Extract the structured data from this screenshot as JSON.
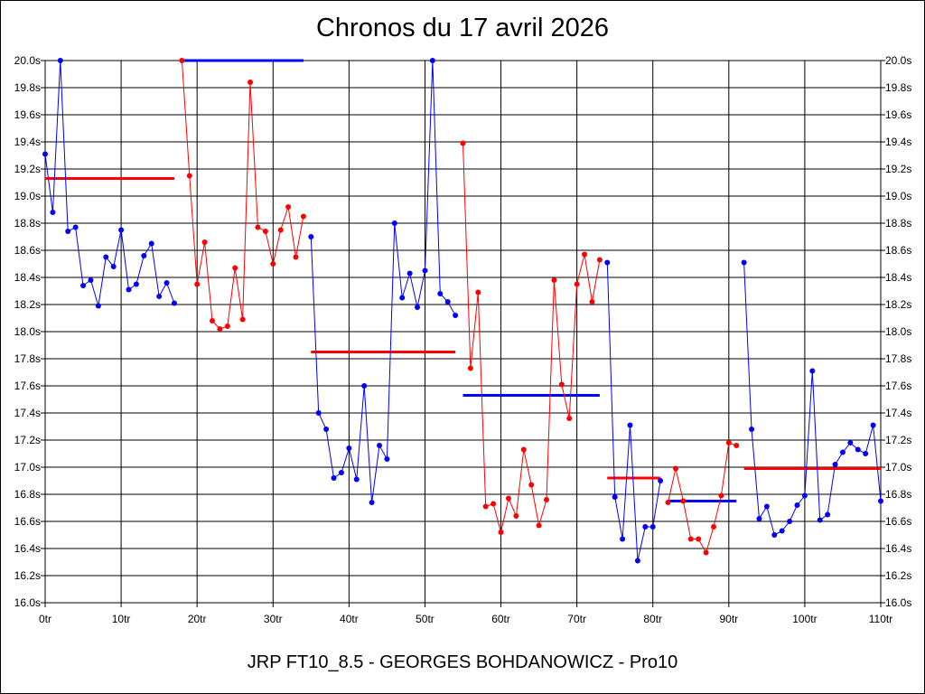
{
  "chart_data": {
    "type": "line",
    "title": "Chronos du 17 avril 2026",
    "subtitle": "JRP FT10_8.5 - GEORGES BOHDANOWICZ - Pro10",
    "xlabel": "",
    "ylabel": "",
    "xlim": [
      0,
      110
    ],
    "ylim": [
      16.0,
      20.0
    ],
    "x_ticks": [
      0,
      10,
      20,
      30,
      40,
      50,
      60,
      70,
      80,
      90,
      100,
      110
    ],
    "x_tick_labels": [
      "0tr",
      "10tr",
      "20tr",
      "30tr",
      "40tr",
      "50tr",
      "60tr",
      "70tr",
      "80tr",
      "90tr",
      "100tr",
      "110tr"
    ],
    "y_ticks": [
      16.0,
      16.2,
      16.4,
      16.6,
      16.8,
      17.0,
      17.2,
      17.4,
      17.6,
      17.8,
      18.0,
      18.2,
      18.4,
      18.6,
      18.8,
      19.0,
      19.2,
      19.4,
      19.6,
      19.8,
      20.0
    ],
    "y_tick_labels": [
      "16.0s",
      "16.2s",
      "16.4s",
      "16.6s",
      "16.8s",
      "17.0s",
      "17.2s",
      "17.4s",
      "17.6s",
      "17.8s",
      "18.0s",
      "18.2s",
      "18.4s",
      "18.6s",
      "18.8s",
      "19.0s",
      "19.2s",
      "19.4s",
      "19.6s",
      "19.8s",
      "20.0s"
    ],
    "grid": true,
    "colors": {
      "blue": "#0000ff",
      "red": "#ff0000",
      "grid": "#000000"
    },
    "series": [
      {
        "color": "#0000ff",
        "x": [
          0,
          1,
          2,
          3,
          4,
          5,
          6,
          7,
          8,
          9,
          10,
          11,
          12,
          13,
          14,
          15,
          16,
          17
        ],
        "values": [
          19.31,
          18.88,
          20.0,
          18.74,
          18.77,
          18.34,
          18.38,
          18.19,
          18.55,
          18.48,
          18.75,
          18.31,
          18.35,
          18.56,
          18.65,
          18.26,
          18.36,
          18.21
        ]
      },
      {
        "color": "#ff0000",
        "x": [
          18,
          19,
          20,
          21,
          22,
          23,
          24,
          25,
          26,
          27,
          28,
          29,
          30,
          31,
          32,
          33,
          34
        ],
        "values": [
          20.0,
          19.15,
          18.35,
          18.66,
          18.08,
          18.02,
          18.04,
          18.47,
          18.09,
          19.84,
          18.77,
          18.74,
          18.5,
          18.75,
          18.92,
          18.55,
          18.85
        ]
      },
      {
        "color": "#0000ff",
        "x": [
          35,
          36,
          37,
          38,
          39,
          40,
          41,
          42,
          43,
          44,
          45,
          46,
          47,
          48,
          49,
          50,
          51,
          52,
          53,
          54
        ],
        "values": [
          18.7,
          17.4,
          17.28,
          16.92,
          16.96,
          17.14,
          16.91,
          17.6,
          16.74,
          17.16,
          17.06,
          18.8,
          18.25,
          18.43,
          18.18,
          18.45,
          20.0,
          18.28,
          18.22,
          18.12
        ]
      },
      {
        "color": "#ff0000",
        "x": [
          55,
          56,
          57,
          58,
          59,
          60,
          61,
          62,
          63,
          64,
          65,
          66,
          67,
          68,
          69,
          70,
          71,
          72,
          73
        ],
        "values": [
          19.39,
          17.73,
          18.29,
          16.71,
          16.73,
          16.52,
          16.77,
          16.64,
          17.13,
          16.87,
          16.57,
          16.76,
          18.38,
          17.61,
          17.36,
          18.35,
          18.57,
          18.22,
          18.53
        ]
      },
      {
        "color": "#0000ff",
        "x": [
          74,
          75,
          76,
          77,
          78,
          79,
          80,
          81
        ],
        "values": [
          18.51,
          16.78,
          16.47,
          17.31,
          16.31,
          16.56,
          16.56,
          16.9
        ]
      },
      {
        "color": "#ff0000",
        "x": [
          82,
          83,
          84,
          85,
          86,
          87,
          88,
          89,
          90,
          91
        ],
        "values": [
          16.74,
          16.99,
          16.75,
          16.47,
          16.47,
          16.37,
          16.56,
          16.79,
          17.18,
          17.16
        ]
      },
      {
        "color": "#0000ff",
        "x": [
          92,
          93,
          94,
          95,
          96,
          97,
          98,
          99,
          100,
          101,
          102,
          103,
          104,
          105,
          106,
          107,
          108,
          109,
          110
        ],
        "values": [
          18.51,
          17.28,
          16.62,
          16.71,
          16.5,
          16.53,
          16.6,
          16.72,
          16.79,
          17.71,
          16.61,
          16.65,
          17.02,
          17.11,
          17.18,
          17.13,
          17.1,
          17.31,
          16.75
        ]
      }
    ],
    "averages": [
      {
        "color": "#ff0000",
        "x_start": 0,
        "x_end": 17,
        "value": 19.13
      },
      {
        "color": "#0000ff",
        "x_start": 18,
        "x_end": 34,
        "value": 20.0
      },
      {
        "color": "#ff0000",
        "x_start": 35,
        "x_end": 54,
        "value": 17.85
      },
      {
        "color": "#0000ff",
        "x_start": 55,
        "x_end": 73,
        "value": 17.53
      },
      {
        "color": "#ff0000",
        "x_start": 74,
        "x_end": 81,
        "value": 16.92
      },
      {
        "color": "#0000ff",
        "x_start": 82,
        "x_end": 91,
        "value": 16.75
      },
      {
        "color": "#ff0000",
        "x_start": 92,
        "x_end": 110,
        "value": 16.99
      }
    ]
  }
}
